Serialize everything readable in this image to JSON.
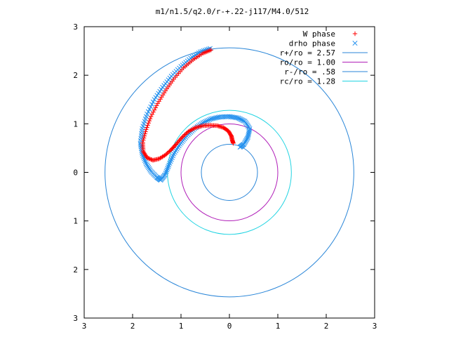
{
  "chart_data": {
    "type": "scatter",
    "title": "m1/n1.5/q2.0/r-+.22-j117/M4.0/512",
    "xlim": [
      -3,
      3
    ],
    "ylim": [
      -3,
      3
    ],
    "x_tick_values": [
      -3,
      -2,
      -1,
      0,
      1,
      2,
      3
    ],
    "x_tick_labels": [
      "3",
      "2",
      "1",
      "0",
      "1",
      "2",
      "3"
    ],
    "y_tick_values": [
      3,
      2,
      1,
      0,
      -1,
      -2,
      -3
    ],
    "y_tick_labels": [
      "3",
      "2",
      "1",
      "0",
      "1",
      "2",
      "3"
    ],
    "grid": false,
    "legend_position": "top-right",
    "series": [
      {
        "name": "W phase",
        "kind": "points",
        "marker": "plus",
        "color": "#ff0000",
        "points": [
          [
            -0.38,
            2.52
          ],
          [
            -0.55,
            2.45
          ],
          [
            -0.75,
            2.32
          ],
          [
            -0.95,
            2.15
          ],
          [
            -1.15,
            1.92
          ],
          [
            -1.32,
            1.68
          ],
          [
            -1.48,
            1.42
          ],
          [
            -1.62,
            1.15
          ],
          [
            -1.72,
            0.88
          ],
          [
            -1.79,
            0.62
          ],
          [
            -1.78,
            0.43
          ],
          [
            -1.7,
            0.3
          ],
          [
            -1.58,
            0.25
          ],
          [
            -1.45,
            0.28
          ],
          [
            -1.32,
            0.36
          ],
          [
            -1.2,
            0.47
          ],
          [
            -1.1,
            0.58
          ],
          [
            -0.98,
            0.72
          ],
          [
            -0.85,
            0.84
          ],
          [
            -0.7,
            0.92
          ],
          [
            -0.55,
            0.96
          ],
          [
            -0.4,
            0.97
          ],
          [
            -0.25,
            0.96
          ],
          [
            -0.12,
            0.92
          ],
          [
            -0.02,
            0.85
          ],
          [
            0.04,
            0.75
          ],
          [
            0.06,
            0.66
          ],
          [
            0.08,
            0.6
          ]
        ]
      },
      {
        "name": "drho phase",
        "kind": "points",
        "marker": "cross",
        "color": "#2290ee",
        "points": [
          [
            -0.4,
            2.55
          ],
          [
            -0.6,
            2.48
          ],
          [
            -0.8,
            2.35
          ],
          [
            -1.0,
            2.18
          ],
          [
            -1.2,
            1.98
          ],
          [
            -1.38,
            1.75
          ],
          [
            -1.55,
            1.5
          ],
          [
            -1.7,
            1.2
          ],
          [
            -1.8,
            0.9
          ],
          [
            -1.84,
            0.6
          ],
          [
            -1.8,
            0.38
          ],
          [
            -1.72,
            0.18
          ],
          [
            -1.62,
            0.02
          ],
          [
            -1.5,
            -0.1
          ],
          [
            -1.42,
            -0.16
          ],
          [
            -1.33,
            -0.05
          ],
          [
            -1.25,
            0.15
          ],
          [
            -1.15,
            0.38
          ],
          [
            -1.02,
            0.58
          ],
          [
            -0.88,
            0.75
          ],
          [
            -0.72,
            0.9
          ],
          [
            -0.55,
            1.02
          ],
          [
            -0.38,
            1.1
          ],
          [
            -0.2,
            1.14
          ],
          [
            0.0,
            1.15
          ],
          [
            0.18,
            1.12
          ],
          [
            0.32,
            1.05
          ],
          [
            0.42,
            0.9
          ],
          [
            0.38,
            0.72
          ],
          [
            0.3,
            0.58
          ],
          [
            0.22,
            0.52
          ]
        ]
      },
      {
        "name": "r+/ro = 2.57",
        "kind": "circle",
        "radius": 2.57,
        "color": "#2a86d8"
      },
      {
        "name": "ro/ro = 1.00",
        "kind": "circle",
        "radius": 1.0,
        "color": "#b01eb8"
      },
      {
        "name": "r-/ro = .58",
        "kind": "circle",
        "radius": 0.58,
        "color": "#2a86d8"
      },
      {
        "name": "rc/ro = 1.28",
        "kind": "circle",
        "radius": 1.28,
        "color": "#22d4e2"
      }
    ]
  }
}
